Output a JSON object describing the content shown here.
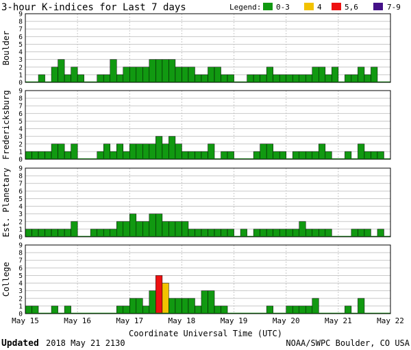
{
  "title": "3-hour K-indices for Last 7 days",
  "legend": {
    "label": "Legend:",
    "items": [
      {
        "label": "0-3",
        "color": "#119911"
      },
      {
        "label": "4",
        "color": "#f2c200"
      },
      {
        "label": "5,6",
        "color": "#ee1111"
      },
      {
        "label": "7-9",
        "color": "#441188"
      }
    ]
  },
  "footer": {
    "updated_label": "Updated",
    "updated_value": "2018 May 21 2130",
    "credit": "NOAA/SWPC Boulder, CO USA"
  },
  "chart_data": {
    "type": "bar",
    "xlabel": "Coordinate Universal Time (UTC)",
    "x_ticks": [
      "May 15",
      "May 16",
      "May 17",
      "May 18",
      "May 19",
      "May 20",
      "May 21",
      "May 22"
    ],
    "ylim": [
      0,
      9
    ],
    "y_ticks": [
      "0",
      "1",
      "2",
      "3",
      "4",
      "5",
      "6",
      "7",
      "8",
      "9"
    ],
    "bins_per_day": 8,
    "color_scale": {
      "0-3": "#119911",
      "4": "#f2c200",
      "5,6": "#ee1111",
      "7-9": "#441188"
    },
    "panels": [
      {
        "ylabel": "Boulder",
        "values": [
          0,
          0,
          1,
          0,
          2,
          3,
          1,
          2,
          1,
          0,
          0,
          1,
          1,
          3,
          1,
          2,
          2,
          2,
          2,
          3,
          3,
          3,
          3,
          2,
          2,
          2,
          1,
          1,
          2,
          2,
          1,
          1,
          0,
          0,
          1,
          1,
          1,
          2,
          1,
          1,
          1,
          1,
          1,
          1,
          2,
          2,
          1,
          2,
          0,
          1,
          1,
          2,
          1,
          2,
          0,
          0
        ]
      },
      {
        "ylabel": "Fredericksburg",
        "values": [
          1,
          1,
          1,
          1,
          2,
          2,
          1,
          2,
          0,
          0,
          0,
          1,
          2,
          1,
          2,
          1,
          2,
          2,
          2,
          2,
          3,
          2,
          3,
          2,
          1,
          1,
          1,
          1,
          2,
          0,
          1,
          1,
          0,
          0,
          0,
          1,
          2,
          2,
          1,
          1,
          0,
          1,
          1,
          1,
          1,
          2,
          1,
          0,
          0,
          1,
          0,
          2,
          1,
          1,
          1,
          0
        ]
      },
      {
        "ylabel": "Est. Planetary",
        "values": [
          1,
          1,
          1,
          1,
          1,
          1,
          1,
          2,
          0,
          0,
          1,
          1,
          1,
          1,
          2,
          2,
          3,
          2,
          2,
          3,
          3,
          2,
          2,
          2,
          2,
          1,
          1,
          1,
          1,
          1,
          1,
          1,
          0,
          1,
          0,
          1,
          1,
          1,
          1,
          1,
          1,
          1,
          2,
          1,
          1,
          1,
          1,
          0,
          0,
          0,
          1,
          1,
          1,
          0,
          1,
          0
        ]
      },
      {
        "ylabel": "College",
        "values": [
          1,
          1,
          0,
          0,
          1,
          0,
          1,
          0,
          0,
          0,
          0,
          0,
          0,
          0,
          1,
          1,
          2,
          2,
          1,
          3,
          5,
          4,
          2,
          2,
          2,
          2,
          1,
          3,
          3,
          1,
          1,
          0,
          0,
          0,
          0,
          0,
          0,
          1,
          0,
          0,
          1,
          1,
          1,
          1,
          2,
          0,
          0,
          0,
          0,
          1,
          0,
          2,
          0,
          0,
          0,
          0
        ]
      }
    ]
  }
}
